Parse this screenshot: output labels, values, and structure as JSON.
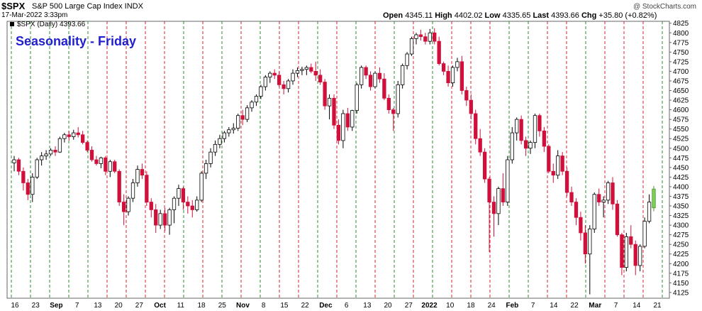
{
  "header": {
    "symbol": "$SPX",
    "description": "S&P 500 Large Cap Index  INDX",
    "datetime": "17-Mar-2022 3:33pm",
    "open_label": "Open",
    "open": "4345.11",
    "high_label": "High",
    "high": "4402.02",
    "low_label": "Low",
    "low": "4335.65",
    "last_label": "Last",
    "last": "4393.66",
    "chg_label": "Chg",
    "chg": "+35.80 (+0.82%)",
    "watermark": "@ StockCharts.com"
  },
  "chart_data": {
    "type": "candlestick",
    "title": "Seasonality - Friday",
    "legend": "$SPX (Daily) 4393.66",
    "ylim": [
      4110,
      4830
    ],
    "y_ticks": [
      4125,
      4150,
      4175,
      4200,
      4225,
      4250,
      4275,
      4300,
      4325,
      4350,
      4375,
      4400,
      4425,
      4450,
      4475,
      4500,
      4525,
      4550,
      4575,
      4600,
      4625,
      4650,
      4675,
      4700,
      4725,
      4750,
      4775,
      4800,
      4825
    ],
    "x_ticks": [
      "16",
      "23",
      "Sep",
      "7",
      "13",
      "20",
      "27",
      "Oct",
      "11",
      "18",
      "25",
      "Nov",
      "8",
      "15",
      "22",
      "Dec",
      "6",
      "13",
      "20",
      "27",
      "2022",
      "10",
      "18",
      "24",
      "Feb",
      "7",
      "14",
      "22",
      "Mar",
      "7",
      "14",
      "21"
    ],
    "grid": "vertical dashed lines mark weeks: green = up week, red = down week",
    "colors": {
      "up": "#ffffff",
      "down": "#d0103a",
      "last": "#7fce5a",
      "grid_up": "#2e8b2e",
      "grid_down": "#d9262c",
      "title": "#1f1fd0"
    },
    "ohlc": [
      [
        4462,
        4480,
        4440,
        4470
      ],
      [
        4470,
        4475,
        4430,
        4440
      ],
      [
        4440,
        4450,
        4390,
        4410
      ],
      [
        4410,
        4420,
        4365,
        4380
      ],
      [
        4380,
        4435,
        4360,
        4425
      ],
      [
        4425,
        4475,
        4420,
        4470
      ],
      [
        4470,
        4490,
        4455,
        4480
      ],
      [
        4480,
        4495,
        4470,
        4485
      ],
      [
        4485,
        4500,
        4480,
        4495
      ],
      [
        4495,
        4505,
        4480,
        4490
      ],
      [
        4490,
        4530,
        4488,
        4525
      ],
      [
        4525,
        4540,
        4515,
        4535
      ],
      [
        4535,
        4545,
        4520,
        4530
      ],
      [
        4530,
        4548,
        4522,
        4540
      ],
      [
        4540,
        4555,
        4528,
        4535
      ],
      [
        4535,
        4545,
        4510,
        4515
      ],
      [
        4515,
        4520,
        4490,
        4495
      ],
      [
        4495,
        4505,
        4465,
        4470
      ],
      [
        4470,
        4480,
        4455,
        4460
      ],
      [
        4460,
        4478,
        4448,
        4475
      ],
      [
        4475,
        4480,
        4430,
        4440
      ],
      [
        4440,
        4470,
        4425,
        4465
      ],
      [
        4465,
        4470,
        4435,
        4440
      ],
      [
        4440,
        4445,
        4350,
        4360
      ],
      [
        4360,
        4380,
        4300,
        4335
      ],
      [
        4335,
        4375,
        4325,
        4370
      ],
      [
        4370,
        4420,
        4360,
        4410
      ],
      [
        4410,
        4455,
        4400,
        4445
      ],
      [
        4445,
        4460,
        4420,
        4430
      ],
      [
        4430,
        4440,
        4350,
        4360
      ],
      [
        4360,
        4370,
        4320,
        4340
      ],
      [
        4340,
        4355,
        4280,
        4300
      ],
      [
        4300,
        4340,
        4290,
        4330
      ],
      [
        4330,
        4345,
        4285,
        4300
      ],
      [
        4300,
        4345,
        4275,
        4340
      ],
      [
        4340,
        4375,
        4305,
        4370
      ],
      [
        4370,
        4405,
        4350,
        4395
      ],
      [
        4395,
        4400,
        4340,
        4360
      ],
      [
        4360,
        4375,
        4330,
        4350
      ],
      [
        4350,
        4365,
        4320,
        4340
      ],
      [
        4340,
        4375,
        4335,
        4365
      ],
      [
        4365,
        4440,
        4360,
        4435
      ],
      [
        4435,
        4470,
        4420,
        4460
      ],
      [
        4460,
        4500,
        4450,
        4490
      ],
      [
        4490,
        4520,
        4480,
        4510
      ],
      [
        4510,
        4535,
        4500,
        4525
      ],
      [
        4525,
        4545,
        4515,
        4540
      ],
      [
        4540,
        4555,
        4530,
        4548
      ],
      [
        4548,
        4565,
        4538,
        4552
      ],
      [
        4552,
        4590,
        4545,
        4585
      ],
      [
        4585,
        4600,
        4560,
        4575
      ],
      [
        4575,
        4612,
        4568,
        4605
      ],
      [
        4605,
        4625,
        4595,
        4620
      ],
      [
        4620,
        4640,
        4610,
        4635
      ],
      [
        4635,
        4665,
        4628,
        4660
      ],
      [
        4660,
        4690,
        4650,
        4685
      ],
      [
        4685,
        4700,
        4670,
        4695
      ],
      [
        4695,
        4705,
        4680,
        4690
      ],
      [
        4690,
        4700,
        4660,
        4665
      ],
      [
        4665,
        4675,
        4640,
        4655
      ],
      [
        4655,
        4680,
        4645,
        4675
      ],
      [
        4675,
        4705,
        4665,
        4695
      ],
      [
        4695,
        4710,
        4685,
        4702
      ],
      [
        4702,
        4712,
        4690,
        4705
      ],
      [
        4705,
        4715,
        4690,
        4710
      ],
      [
        4710,
        4720,
        4695,
        4700
      ],
      [
        4700,
        4725,
        4675,
        4690
      ],
      [
        4690,
        4705,
        4665,
        4672
      ],
      [
        4672,
        4680,
        4600,
        4610
      ],
      [
        4610,
        4640,
        4575,
        4630
      ],
      [
        4630,
        4640,
        4550,
        4560
      ],
      [
        4560,
        4575,
        4510,
        4520
      ],
      [
        4520,
        4600,
        4500,
        4590
      ],
      [
        4590,
        4605,
        4545,
        4555
      ],
      [
        4555,
        4600,
        4545,
        4598
      ],
      [
        4598,
        4670,
        4590,
        4665
      ],
      [
        4665,
        4715,
        4655,
        4710
      ],
      [
        4710,
        4715,
        4680,
        4690
      ],
      [
        4690,
        4700,
        4650,
        4660
      ],
      [
        4660,
        4700,
        4655,
        4695
      ],
      [
        4695,
        4710,
        4670,
        4680
      ],
      [
        4680,
        4695,
        4625,
        4630
      ],
      [
        4630,
        4640,
        4590,
        4600
      ],
      [
        4600,
        4605,
        4545,
        4590
      ],
      [
        4590,
        4675,
        4580,
        4665
      ],
      [
        4665,
        4720,
        4655,
        4715
      ],
      [
        4715,
        4750,
        4705,
        4745
      ],
      [
        4745,
        4790,
        4740,
        4785
      ],
      [
        4785,
        4800,
        4770,
        4795
      ],
      [
        4795,
        4808,
        4780,
        4790
      ],
      [
        4790,
        4800,
        4770,
        4778
      ],
      [
        4778,
        4810,
        4770,
        4800
      ],
      [
        4800,
        4812,
        4770,
        4778
      ],
      [
        4778,
        4790,
        4715,
        4720
      ],
      [
        4720,
        4725,
        4690,
        4700
      ],
      [
        4700,
        4715,
        4660,
        4670
      ],
      [
        4670,
        4715,
        4660,
        4710
      ],
      [
        4710,
        4735,
        4700,
        4725
      ],
      [
        4725,
        4740,
        4640,
        4650
      ],
      [
        4650,
        4660,
        4610,
        4625
      ],
      [
        4625,
        4640,
        4575,
        4590
      ],
      [
        4590,
        4600,
        4510,
        4525
      ],
      [
        4525,
        4550,
        4480,
        4490
      ],
      [
        4490,
        4500,
        4410,
        4420
      ],
      [
        4420,
        4425,
        4230,
        4360
      ],
      [
        4360,
        4375,
        4270,
        4330
      ],
      [
        4330,
        4400,
        4300,
        4395
      ],
      [
        4395,
        4435,
        4350,
        4360
      ],
      [
        4360,
        4480,
        4350,
        4470
      ],
      [
        4470,
        4555,
        4460,
        4540
      ],
      [
        4540,
        4580,
        4520,
        4575
      ],
      [
        4575,
        4585,
        4510,
        4520
      ],
      [
        4520,
        4530,
        4480,
        4500
      ],
      [
        4500,
        4520,
        4485,
        4515
      ],
      [
        4515,
        4590,
        4500,
        4585
      ],
      [
        4585,
        4590,
        4530,
        4545
      ],
      [
        4545,
        4555,
        4490,
        4505
      ],
      [
        4505,
        4510,
        4435,
        4440
      ],
      [
        4440,
        4460,
        4410,
        4430
      ],
      [
        4430,
        4495,
        4420,
        4480
      ],
      [
        4480,
        4490,
        4430,
        4440
      ],
      [
        4440,
        4450,
        4375,
        4385
      ],
      [
        4385,
        4400,
        4350,
        4360
      ],
      [
        4360,
        4370,
        4300,
        4320
      ],
      [
        4320,
        4335,
        4260,
        4280
      ],
      [
        4280,
        4300,
        4200,
        4225
      ],
      [
        4225,
        4300,
        4120,
        4290
      ],
      [
        4290,
        4385,
        4280,
        4380
      ],
      [
        4380,
        4395,
        4350,
        4360
      ],
      [
        4360,
        4375,
        4320,
        4365
      ],
      [
        4365,
        4415,
        4355,
        4410
      ],
      [
        4410,
        4425,
        4340,
        4355
      ],
      [
        4355,
        4365,
        4270,
        4275
      ],
      [
        4275,
        4280,
        4170,
        4190
      ],
      [
        4190,
        4280,
        4180,
        4270
      ],
      [
        4270,
        4300,
        4240,
        4250
      ],
      [
        4250,
        4260,
        4170,
        4195
      ],
      [
        4195,
        4250,
        4180,
        4245
      ],
      [
        4245,
        4320,
        4240,
        4310
      ],
      [
        4310,
        4380,
        4305,
        4360
      ],
      [
        4345,
        4402,
        4336,
        4394
      ]
    ],
    "week_lines": [
      "up",
      "up",
      "up",
      "up",
      "up",
      "down",
      "down",
      "down",
      "down",
      "up",
      "down",
      "up",
      "down",
      "up",
      "down",
      "down",
      "up",
      "down",
      "up",
      "down",
      "up",
      "down",
      "up",
      "down",
      "down",
      "down",
      "up",
      "up",
      "down",
      "down",
      "up",
      "down",
      "down",
      "down",
      "up"
    ]
  }
}
